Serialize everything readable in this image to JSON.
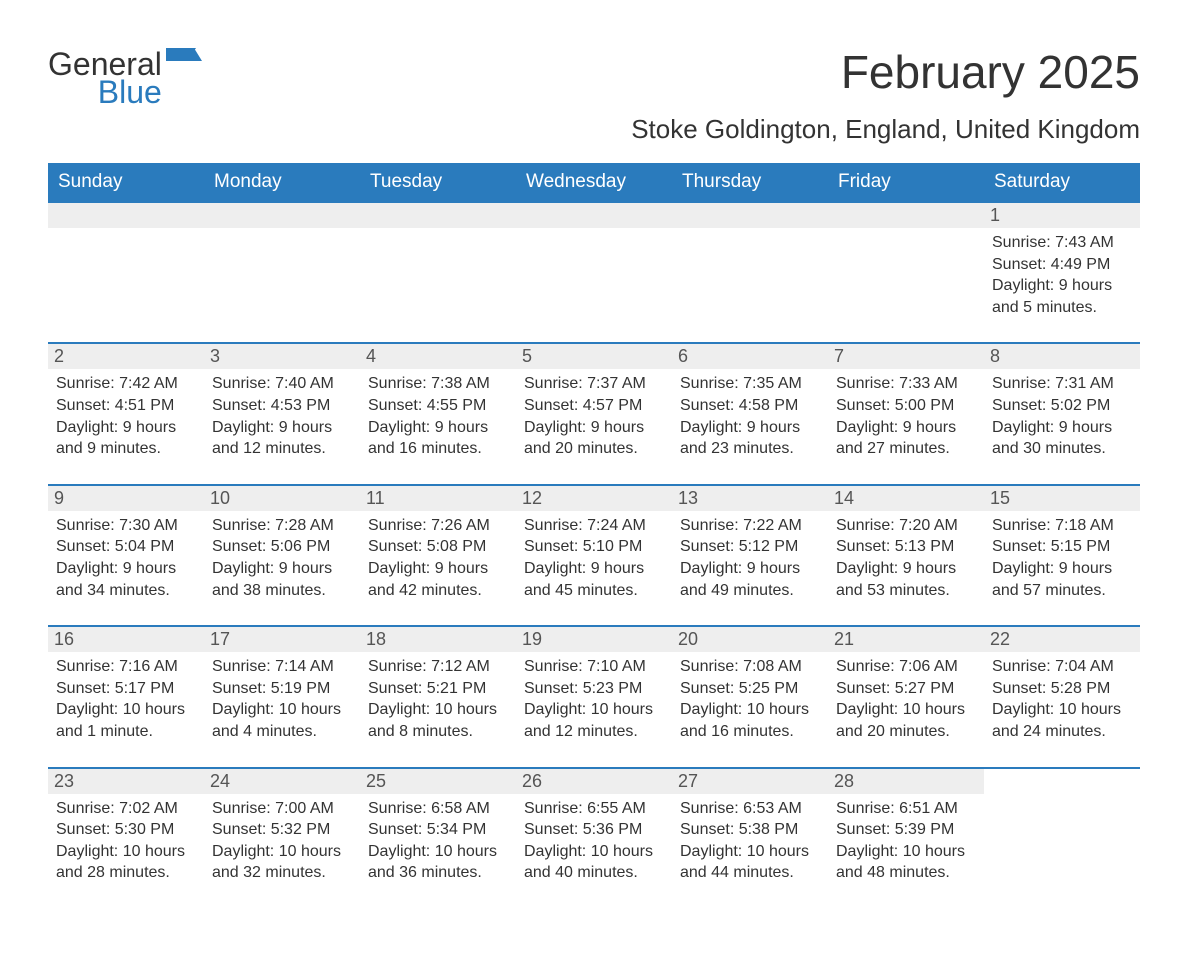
{
  "logo": {
    "line1": "General",
    "line2": "Blue",
    "icon_color": "#2a7bbd"
  },
  "header": {
    "month_title": "February 2025",
    "location": "Stoke Goldington, England, United Kingdom"
  },
  "colors": {
    "header_bg": "#2a7bbd",
    "header_text": "#ffffff",
    "daybar_bg": "#eeeeee",
    "rule": "#2a7bbd",
    "body_text": "#333333"
  },
  "weekdays": [
    "Sunday",
    "Monday",
    "Tuesday",
    "Wednesday",
    "Thursday",
    "Friday",
    "Saturday"
  ],
  "weeks": [
    [
      null,
      null,
      null,
      null,
      null,
      null,
      {
        "n": "1",
        "sunrise": "Sunrise: 7:43 AM",
        "sunset": "Sunset: 4:49 PM",
        "daylight": "Daylight: 9 hours and 5 minutes."
      }
    ],
    [
      {
        "n": "2",
        "sunrise": "Sunrise: 7:42 AM",
        "sunset": "Sunset: 4:51 PM",
        "daylight": "Daylight: 9 hours and 9 minutes."
      },
      {
        "n": "3",
        "sunrise": "Sunrise: 7:40 AM",
        "sunset": "Sunset: 4:53 PM",
        "daylight": "Daylight: 9 hours and 12 minutes."
      },
      {
        "n": "4",
        "sunrise": "Sunrise: 7:38 AM",
        "sunset": "Sunset: 4:55 PM",
        "daylight": "Daylight: 9 hours and 16 minutes."
      },
      {
        "n": "5",
        "sunrise": "Sunrise: 7:37 AM",
        "sunset": "Sunset: 4:57 PM",
        "daylight": "Daylight: 9 hours and 20 minutes."
      },
      {
        "n": "6",
        "sunrise": "Sunrise: 7:35 AM",
        "sunset": "Sunset: 4:58 PM",
        "daylight": "Daylight: 9 hours and 23 minutes."
      },
      {
        "n": "7",
        "sunrise": "Sunrise: 7:33 AM",
        "sunset": "Sunset: 5:00 PM",
        "daylight": "Daylight: 9 hours and 27 minutes."
      },
      {
        "n": "8",
        "sunrise": "Sunrise: 7:31 AM",
        "sunset": "Sunset: 5:02 PM",
        "daylight": "Daylight: 9 hours and 30 minutes."
      }
    ],
    [
      {
        "n": "9",
        "sunrise": "Sunrise: 7:30 AM",
        "sunset": "Sunset: 5:04 PM",
        "daylight": "Daylight: 9 hours and 34 minutes."
      },
      {
        "n": "10",
        "sunrise": "Sunrise: 7:28 AM",
        "sunset": "Sunset: 5:06 PM",
        "daylight": "Daylight: 9 hours and 38 minutes."
      },
      {
        "n": "11",
        "sunrise": "Sunrise: 7:26 AM",
        "sunset": "Sunset: 5:08 PM",
        "daylight": "Daylight: 9 hours and 42 minutes."
      },
      {
        "n": "12",
        "sunrise": "Sunrise: 7:24 AM",
        "sunset": "Sunset: 5:10 PM",
        "daylight": "Daylight: 9 hours and 45 minutes."
      },
      {
        "n": "13",
        "sunrise": "Sunrise: 7:22 AM",
        "sunset": "Sunset: 5:12 PM",
        "daylight": "Daylight: 9 hours and 49 minutes."
      },
      {
        "n": "14",
        "sunrise": "Sunrise: 7:20 AM",
        "sunset": "Sunset: 5:13 PM",
        "daylight": "Daylight: 9 hours and 53 minutes."
      },
      {
        "n": "15",
        "sunrise": "Sunrise: 7:18 AM",
        "sunset": "Sunset: 5:15 PM",
        "daylight": "Daylight: 9 hours and 57 minutes."
      }
    ],
    [
      {
        "n": "16",
        "sunrise": "Sunrise: 7:16 AM",
        "sunset": "Sunset: 5:17 PM",
        "daylight": "Daylight: 10 hours and 1 minute."
      },
      {
        "n": "17",
        "sunrise": "Sunrise: 7:14 AM",
        "sunset": "Sunset: 5:19 PM",
        "daylight": "Daylight: 10 hours and 4 minutes."
      },
      {
        "n": "18",
        "sunrise": "Sunrise: 7:12 AM",
        "sunset": "Sunset: 5:21 PM",
        "daylight": "Daylight: 10 hours and 8 minutes."
      },
      {
        "n": "19",
        "sunrise": "Sunrise: 7:10 AM",
        "sunset": "Sunset: 5:23 PM",
        "daylight": "Daylight: 10 hours and 12 minutes."
      },
      {
        "n": "20",
        "sunrise": "Sunrise: 7:08 AM",
        "sunset": "Sunset: 5:25 PM",
        "daylight": "Daylight: 10 hours and 16 minutes."
      },
      {
        "n": "21",
        "sunrise": "Sunrise: 7:06 AM",
        "sunset": "Sunset: 5:27 PM",
        "daylight": "Daylight: 10 hours and 20 minutes."
      },
      {
        "n": "22",
        "sunrise": "Sunrise: 7:04 AM",
        "sunset": "Sunset: 5:28 PM",
        "daylight": "Daylight: 10 hours and 24 minutes."
      }
    ],
    [
      {
        "n": "23",
        "sunrise": "Sunrise: 7:02 AM",
        "sunset": "Sunset: 5:30 PM",
        "daylight": "Daylight: 10 hours and 28 minutes."
      },
      {
        "n": "24",
        "sunrise": "Sunrise: 7:00 AM",
        "sunset": "Sunset: 5:32 PM",
        "daylight": "Daylight: 10 hours and 32 minutes."
      },
      {
        "n": "25",
        "sunrise": "Sunrise: 6:58 AM",
        "sunset": "Sunset: 5:34 PM",
        "daylight": "Daylight: 10 hours and 36 minutes."
      },
      {
        "n": "26",
        "sunrise": "Sunrise: 6:55 AM",
        "sunset": "Sunset: 5:36 PM",
        "daylight": "Daylight: 10 hours and 40 minutes."
      },
      {
        "n": "27",
        "sunrise": "Sunrise: 6:53 AM",
        "sunset": "Sunset: 5:38 PM",
        "daylight": "Daylight: 10 hours and 44 minutes."
      },
      {
        "n": "28",
        "sunrise": "Sunrise: 6:51 AM",
        "sunset": "Sunset: 5:39 PM",
        "daylight": "Daylight: 10 hours and 48 minutes."
      },
      null
    ]
  ]
}
